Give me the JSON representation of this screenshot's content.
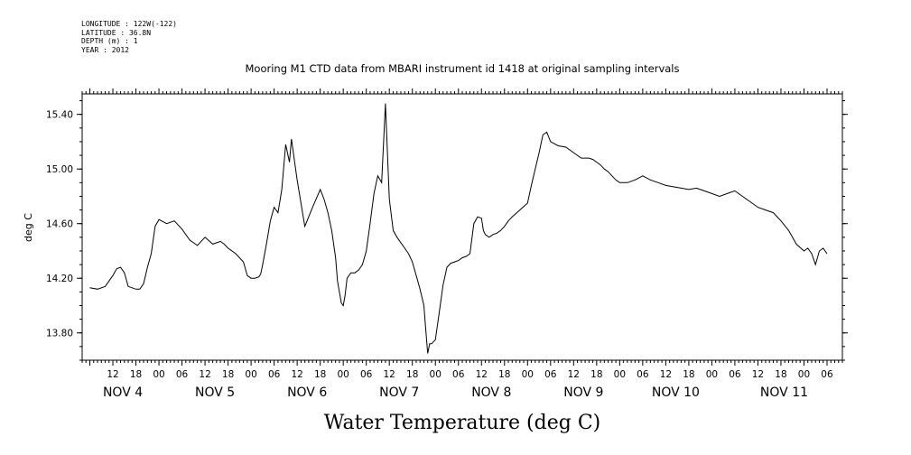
{
  "meta": {
    "longitude": "LONGITUDE : 122W(-122)",
    "latitude": "LATITUDE : 36.8N",
    "depth": "DEPTH (m) : 1",
    "year": "YEAR : 2012"
  },
  "chart_data": {
    "type": "line",
    "title": "Mooring M1 CTD data from MBARI instrument id 1418 at original sampling intervals",
    "xlabel": "Water Temperature (deg C)",
    "ylabel": "deg C",
    "ylim": [
      13.6,
      15.55
    ],
    "yticks": [
      "13.80",
      "14.20",
      "14.60",
      "15.00",
      "15.40"
    ],
    "xlim_hours_note": "",
    "hour_ticks": [
      "12",
      "18",
      "00",
      "06",
      "12",
      "18",
      "00",
      "06",
      "12",
      "18",
      "00",
      "06",
      "12",
      "18",
      "00",
      "06",
      "12",
      "18",
      "00",
      "06",
      "12",
      "18",
      "00",
      "06",
      "12",
      "18",
      "00",
      "06",
      "12",
      "18",
      "00",
      "06"
    ],
    "date_labels": [
      "NOV  4",
      "NOV  5",
      "NOV  6",
      "NOV  7",
      "NOV  8",
      "NOV  9",
      "NOV 10",
      "NOV 11"
    ],
    "grid": false,
    "series": [
      {
        "x": [
          "Nov 3 06:00",
          "Nov 3 08:00",
          "Nov 3 10:00",
          "Nov 3 12:00",
          "Nov 3 13:00",
          "Nov 3 14:00",
          "Nov 3 15:00",
          "Nov 3 16:00",
          "Nov 3 18:00",
          "Nov 3 19:00",
          "Nov 3 20:00",
          "Nov 3 21:00",
          "Nov 3 22:00",
          "Nov 3 23:00",
          "Nov 4 00:00",
          "Nov 4 02:00",
          "Nov 4 04:00",
          "Nov 4 06:00",
          "Nov 4 08:00",
          "Nov 4 10:00",
          "Nov 4 12:00",
          "Nov 4 14:00",
          "Nov 4 16:00",
          "Nov 4 17:00",
          "Nov 4 18:00",
          "Nov 4 20:00",
          "Nov 4 22:00",
          "Nov 4 23:00",
          "Nov 5 00:00",
          "Nov 5 01:00",
          "Nov 5 02:00",
          "Nov 5 02:30",
          "Nov 5 03:00",
          "Nov 5 04:00",
          "Nov 5 05:00",
          "Nov 5 06:00",
          "Nov 5 07:00",
          "Nov 5 08:00",
          "Nov 5 09:00",
          "Nov 5 10:00",
          "Nov 5 10:30",
          "Nov 5 12:00",
          "Nov 5 14:00",
          "Nov 5 15:00",
          "Nov 5 16:00",
          "Nov 5 18:00",
          "Nov 5 19:00",
          "Nov 5 20:00",
          "Nov 5 21:00",
          "Nov 5 22:00",
          "Nov 5 22:30",
          "Nov 5 23:00",
          "Nov 5 23:30",
          "Nov 6 00:00",
          "Nov 6 00:30",
          "Nov 6 01:00",
          "Nov 6 02:00",
          "Nov 6 03:00",
          "Nov 6 04:00",
          "Nov 6 05:00",
          "Nov 6 06:00",
          "Nov 6 07:00",
          "Nov 6 08:00",
          "Nov 6 09:00",
          "Nov 6 10:00",
          "Nov 6 11:00",
          "Nov 6 12:00",
          "Nov 6 13:00",
          "Nov 6 14:00",
          "Nov 6 15:00",
          "Nov 6 16:00",
          "Nov 6 17:00",
          "Nov 6 18:00",
          "Nov 6 19:00",
          "Nov 6 20:00",
          "Nov 6 21:00",
          "Nov 6 21:30",
          "Nov 6 22:00",
          "Nov 6 22:30",
          "Nov 6 23:00",
          "Nov 7 00:00",
          "Nov 7 01:00",
          "Nov 7 02:00",
          "Nov 7 03:00",
          "Nov 7 04:00",
          "Nov 7 05:00",
          "Nov 7 06:00",
          "Nov 7 07:00",
          "Nov 7 08:00",
          "Nov 7 09:00",
          "Nov 7 10:00",
          "Nov 7 11:00",
          "Nov 7 12:00",
          "Nov 7 12:30",
          "Nov 7 13:00",
          "Nov 7 14:00",
          "Nov 7 15:00",
          "Nov 7 16:00",
          "Nov 7 17:00",
          "Nov 7 18:00",
          "Nov 7 19:00",
          "Nov 7 20:00",
          "Nov 7 22:00",
          "Nov 8 00:00",
          "Nov 8 01:00",
          "Nov 8 02:00",
          "Nov 8 03:00",
          "Nov 8 04:00",
          "Nov 8 05:00",
          "Nov 8 06:00",
          "Nov 8 08:00",
          "Nov 8 10:00",
          "Nov 8 12:00",
          "Nov 8 14:00",
          "Nov 8 16:00",
          "Nov 8 17:00",
          "Nov 8 18:00",
          "Nov 8 19:00",
          "Nov 8 20:00",
          "Nov 8 21:00",
          "Nov 8 22:00",
          "Nov 8 23:00",
          "Nov 9 00:00",
          "Nov 9 02:00",
          "Nov 9 04:00",
          "Nov 9 06:00",
          "Nov 9 08:00",
          "Nov 9 10:00",
          "Nov 9 12:00",
          "Nov 9 14:00",
          "Nov 9 16:00",
          "Nov 9 18:00",
          "Nov 9 20:00",
          "Nov 9 22:00",
          "Nov 10 00:00",
          "Nov 10 02:00",
          "Nov 10 04:00",
          "Nov 10 06:00",
          "Nov 10 08:00",
          "Nov 10 10:00",
          "Nov 10 12:00",
          "Nov 10 14:00",
          "Nov 10 16:00",
          "Nov 10 18:00",
          "Nov 10 20:00",
          "Nov 10 22:00",
          "Nov 11 00:00",
          "Nov 11 01:00",
          "Nov 11 02:00",
          "Nov 11 03:00",
          "Nov 11 04:00",
          "Nov 11 05:00",
          "Nov 11 06:00"
        ],
        "values": [
          14.13,
          14.12,
          14.14,
          14.22,
          14.27,
          14.28,
          14.24,
          14.14,
          14.12,
          14.12,
          14.16,
          14.28,
          14.38,
          14.58,
          14.63,
          14.6,
          14.62,
          14.56,
          14.48,
          14.44,
          14.5,
          14.45,
          14.47,
          14.45,
          14.42,
          14.38,
          14.32,
          14.22,
          14.2,
          14.2,
          14.21,
          14.23,
          14.3,
          14.45,
          14.62,
          14.72,
          14.68,
          14.85,
          15.18,
          15.05,
          15.22,
          14.92,
          14.58,
          14.65,
          14.72,
          14.85,
          14.78,
          14.68,
          14.55,
          14.35,
          14.18,
          14.1,
          14.02,
          14.0,
          14.08,
          14.2,
          14.24,
          14.24,
          14.26,
          14.3,
          14.4,
          14.6,
          14.82,
          14.95,
          14.9,
          15.48,
          14.78,
          14.55,
          14.5,
          14.46,
          14.42,
          14.38,
          14.32,
          14.22,
          14.12,
          14.0,
          13.82,
          13.65,
          13.72,
          13.72,
          13.75,
          13.95,
          14.15,
          14.28,
          14.31,
          14.32,
          14.33,
          14.35,
          14.36,
          14.38,
          14.6,
          14.65,
          14.64,
          14.55,
          14.52,
          14.5,
          14.52,
          14.53,
          14.55,
          14.58,
          14.62,
          14.65,
          14.7,
          14.75,
          14.88,
          15.0,
          15.12,
          15.25,
          15.27,
          15.2,
          15.17,
          15.16,
          15.12,
          15.08,
          15.08,
          15.07,
          15.05,
          15.03,
          15.0,
          14.98,
          14.95,
          14.92,
          14.9,
          14.9,
          14.92,
          14.95,
          14.92,
          14.9,
          14.88,
          14.87,
          14.86,
          14.85,
          14.86,
          14.84,
          14.82,
          14.8,
          14.82,
          14.84,
          14.8,
          14.76,
          14.72,
          14.7,
          14.68,
          14.62,
          14.55,
          14.45,
          14.4,
          14.42,
          14.38,
          14.3,
          14.4,
          14.42,
          14.38
        ]
      }
    ]
  }
}
